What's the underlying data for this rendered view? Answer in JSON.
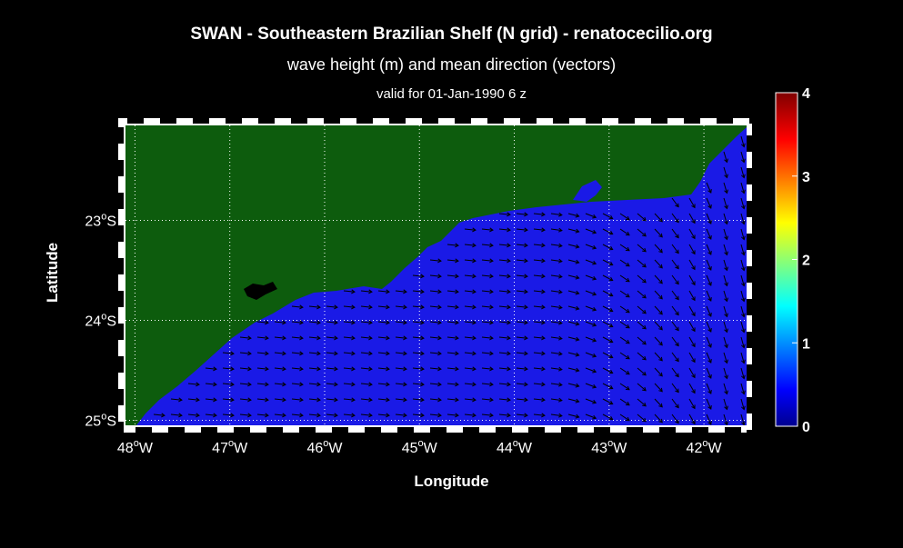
{
  "title": "SWAN - Southeastern Brazilian Shelf (N grid) - renatocecilio.org",
  "subtitle": "wave height (m) and mean direction (vectors)",
  "valid": "valid for 01-Jan-1990   6 z",
  "xaxis": {
    "label": "Longitude",
    "ticks": [
      {
        "value": -48,
        "deg": "48",
        "hem": "W"
      },
      {
        "value": -47,
        "deg": "47",
        "hem": "W"
      },
      {
        "value": -46,
        "deg": "46",
        "hem": "W"
      },
      {
        "value": -45,
        "deg": "45",
        "hem": "W"
      },
      {
        "value": -44,
        "deg": "44",
        "hem": "W"
      },
      {
        "value": -43,
        "deg": "43",
        "hem": "W"
      },
      {
        "value": -42,
        "deg": "42",
        "hem": "W"
      }
    ],
    "range": [
      -48.1,
      -41.55
    ]
  },
  "yaxis": {
    "label": "Latitude",
    "ticks": [
      {
        "value": -23,
        "deg": "23",
        "hem": "S"
      },
      {
        "value": -24,
        "deg": "24",
        "hem": "S"
      },
      {
        "value": -25,
        "deg": "25",
        "hem": "S"
      }
    ],
    "range": [
      -25.05,
      -22.05
    ]
  },
  "colorbar": {
    "ticks": [
      "0",
      "1",
      "2",
      "3",
      "4"
    ],
    "range": [
      0,
      4
    ],
    "colormap": "jet"
  },
  "colors": {
    "land": "#0d5c0d",
    "sea": "#1a1ae6",
    "arrow": "#000000",
    "grid": "#ffffff"
  }
}
